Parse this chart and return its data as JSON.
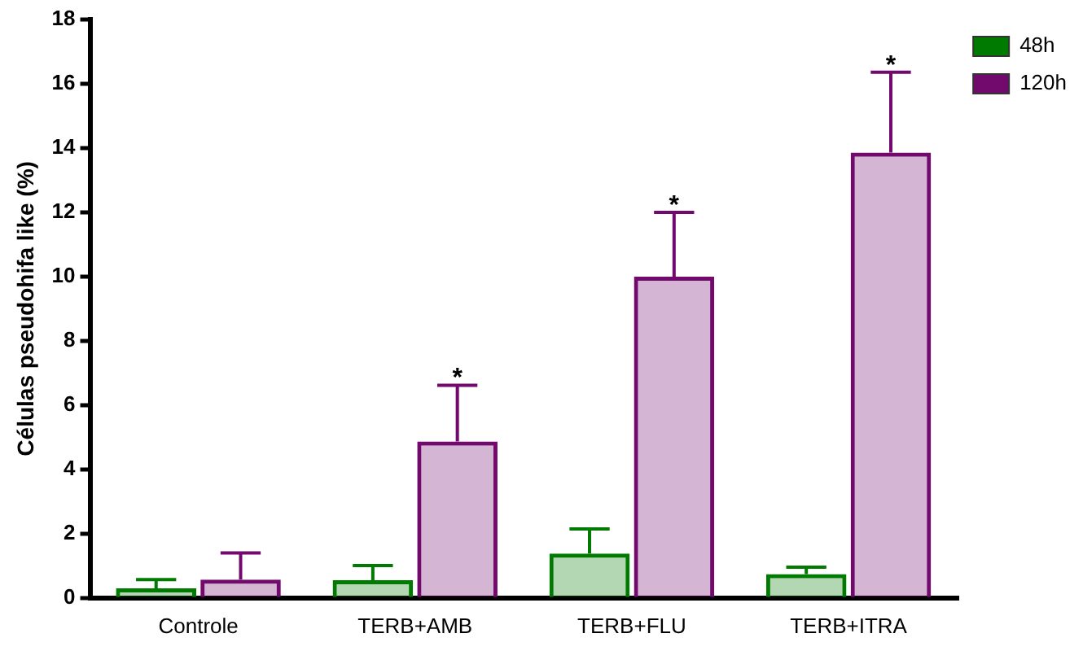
{
  "chart_data": {
    "type": "bar",
    "ylabel": "Células pseudohifa like (%)",
    "categories": [
      "Controle",
      "TERB+AMB",
      "TERB+FLU",
      "TERB+ITRA"
    ],
    "series": [
      {
        "name": "48h",
        "color": "#007a00",
        "values": [
          0.3,
          0.55,
          1.38,
          0.74
        ],
        "errors": [
          0.27,
          0.46,
          0.77,
          0.22
        ]
      },
      {
        "name": "120h",
        "color": "#720a6e",
        "values": [
          0.57,
          4.87,
          10.0,
          13.86
        ],
        "errors": [
          0.83,
          1.75,
          2.0,
          2.5
        ]
      }
    ],
    "ylim": [
      0,
      18
    ],
    "yticks": [
      0,
      2,
      4,
      6,
      8,
      10,
      12,
      14,
      16,
      18
    ],
    "grid": false,
    "legend": "right",
    "annotations": [
      "*",
      "*",
      "*"
    ]
  }
}
